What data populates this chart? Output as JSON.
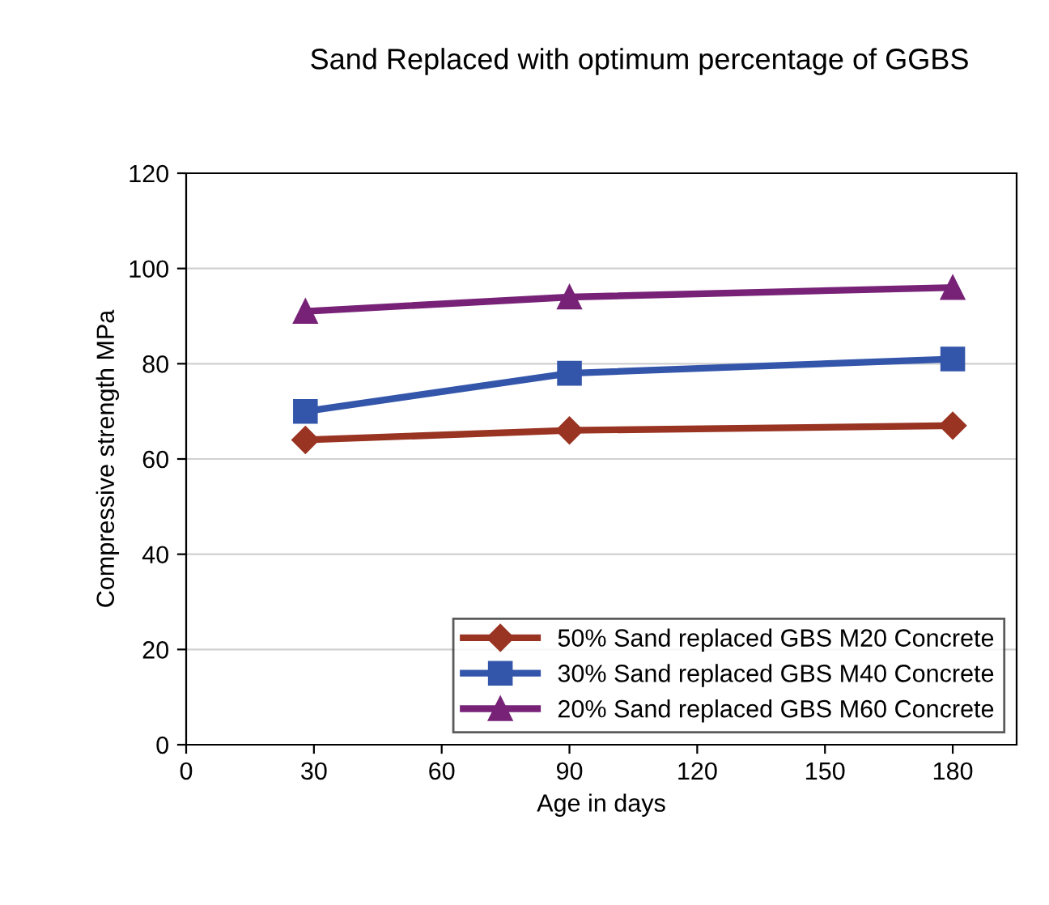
{
  "chart_data": {
    "type": "line",
    "title": "Sand Replaced with optimum percentage of GGBS",
    "xlabel": "Age in days",
    "ylabel": "Compressive strength MPa",
    "x": [
      28,
      90,
      180
    ],
    "xlim": [
      0,
      195
    ],
    "xticks": [
      0,
      30,
      60,
      90,
      120,
      150,
      180
    ],
    "ylim": [
      0,
      120
    ],
    "yticks": [
      0,
      20,
      40,
      60,
      80,
      100,
      120
    ],
    "grid": "y",
    "legend": "bottom right",
    "line_style": "solid",
    "series": [
      {
        "name": "50% Sand replaced GBS M20 Concrete",
        "color": "#993322",
        "marker": "diamond",
        "values": [
          64,
          66,
          67
        ]
      },
      {
        "name": "30% Sand replaced GBS M40 Concrete",
        "color": "#3355aa",
        "marker": "square",
        "values": [
          70,
          78,
          81
        ]
      },
      {
        "name": "20% Sand replaced GBS M60 Concrete",
        "color": "#772277",
        "marker": "triangle",
        "values": [
          91,
          94,
          96
        ]
      }
    ]
  }
}
